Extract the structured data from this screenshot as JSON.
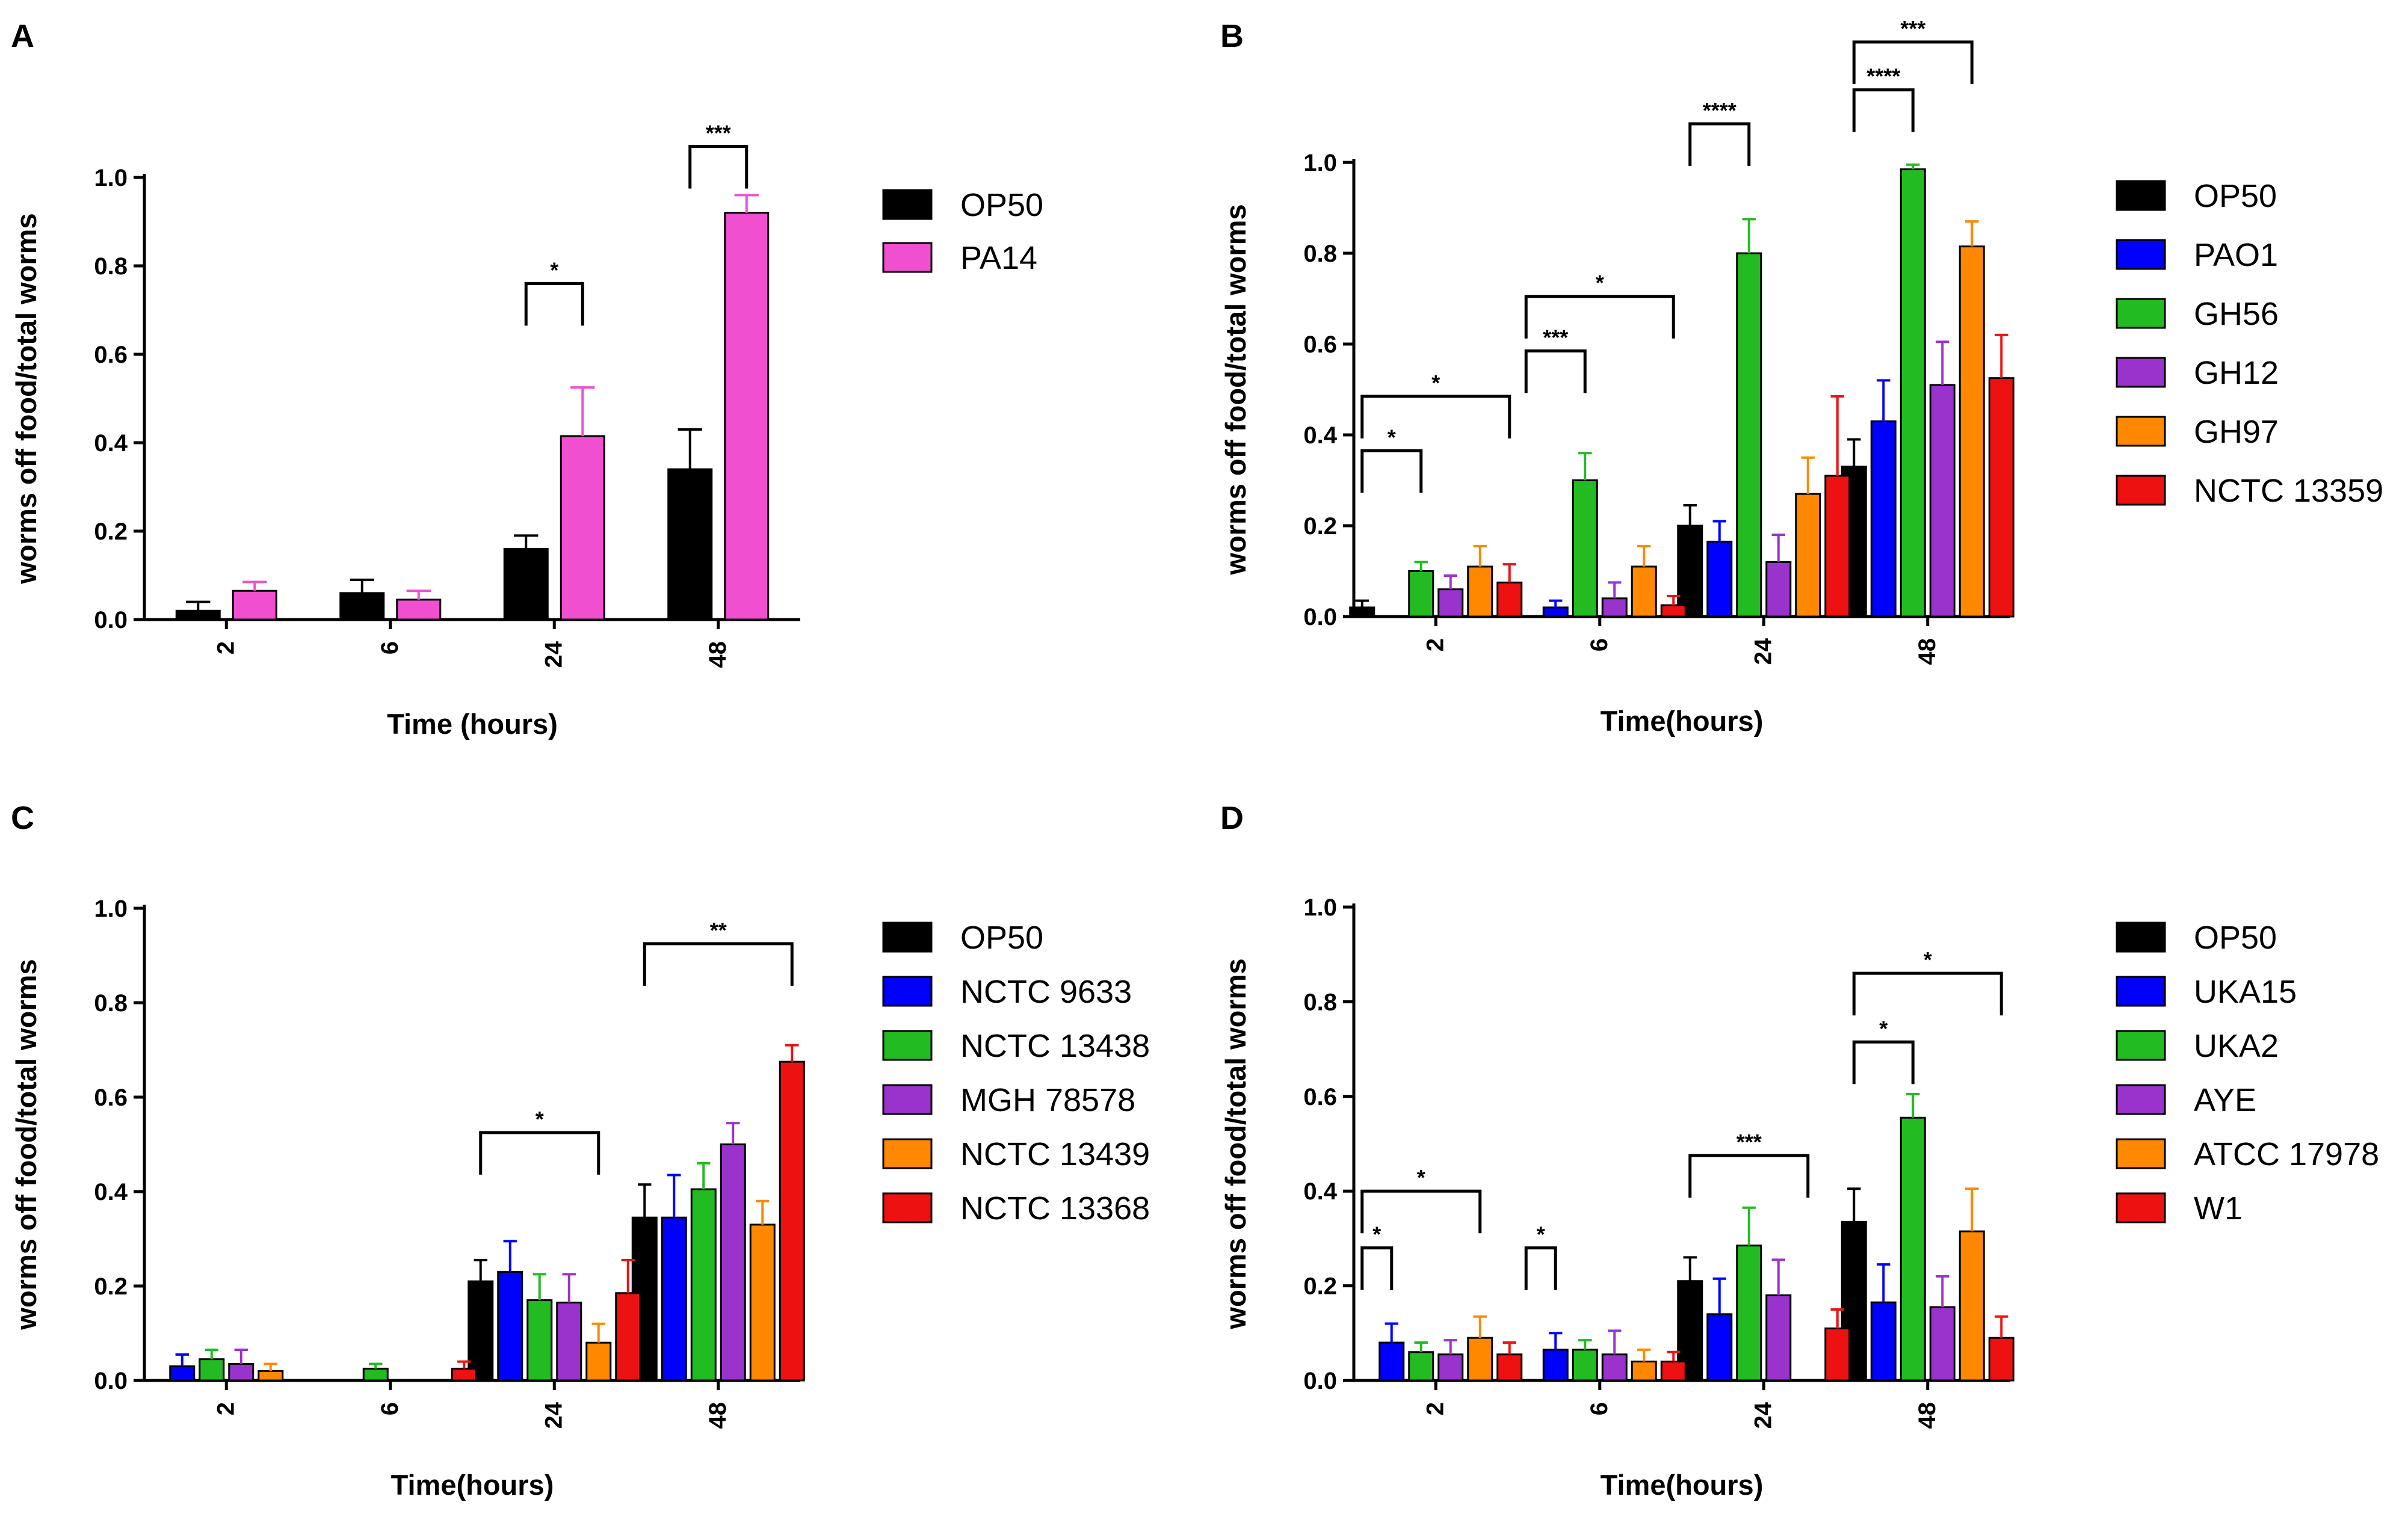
{
  "chart_data": [
    {
      "panel": "A",
      "type": "bar",
      "categories": [
        "2",
        "6",
        "24",
        "48"
      ],
      "xlabel": "Time (hours)",
      "ylabel": "worms off food/total worms",
      "ylim": [
        0,
        1.0
      ],
      "yticks": [
        "0.0",
        "0.2",
        "0.4",
        "0.6",
        "0.8",
        "1.0"
      ],
      "series": [
        {
          "name": "OP50",
          "color": "#000000",
          "values": [
            0.02,
            0.06,
            0.16,
            0.34
          ],
          "errors": [
            0.02,
            0.03,
            0.03,
            0.09
          ]
        },
        {
          "name": "PA14",
          "color": "#f050d0",
          "values": [
            0.065,
            0.045,
            0.415,
            0.92
          ],
          "errors": [
            0.02,
            0.02,
            0.11,
            0.04
          ]
        }
      ],
      "significance": [
        {
          "label": "*",
          "category": 2,
          "from": 0,
          "to": 1,
          "y": 0.76
        },
        {
          "label": "***",
          "category": 3,
          "from": 0,
          "to": 1,
          "y": 1.07
        }
      ]
    },
    {
      "panel": "B",
      "type": "bar",
      "categories": [
        "2",
        "6",
        "24",
        "48"
      ],
      "xlabel": "Time(hours)",
      "ylabel": "worms off food/total worms",
      "ylim": [
        0,
        1.0
      ],
      "yticks": [
        "0.0",
        "0.2",
        "0.4",
        "0.6",
        "0.8",
        "1.0"
      ],
      "series": [
        {
          "name": "OP50",
          "color": "#000000",
          "values": [
            0.02,
            0.0,
            0.2,
            0.33
          ],
          "errors": [
            0.015,
            0.0,
            0.045,
            0.06
          ]
        },
        {
          "name": "PAO1",
          "color": "#0000ff",
          "values": [
            0.0,
            0.02,
            0.165,
            0.43
          ],
          "errors": [
            0.0,
            0.015,
            0.045,
            0.09
          ]
        },
        {
          "name": "GH56",
          "color": "#22bb22",
          "values": [
            0.1,
            0.3,
            0.8,
            0.985
          ],
          "errors": [
            0.02,
            0.06,
            0.075,
            0.01
          ]
        },
        {
          "name": "GH12",
          "color": "#9933cc",
          "values": [
            0.06,
            0.04,
            0.12,
            0.51
          ],
          "errors": [
            0.03,
            0.035,
            0.06,
            0.095
          ]
        },
        {
          "name": "GH97",
          "color": "#ff8800",
          "values": [
            0.11,
            0.11,
            0.27,
            0.815
          ],
          "errors": [
            0.045,
            0.045,
            0.08,
            0.055
          ]
        },
        {
          "name": "NCTC 13359",
          "color": "#ee1111",
          "values": [
            0.075,
            0.025,
            0.31,
            0.525
          ],
          "errors": [
            0.04,
            0.02,
            0.175,
            0.095
          ]
        }
      ],
      "significance": [
        {
          "label": "*",
          "category": 0,
          "from": 0,
          "to": 2,
          "y": 0.365
        },
        {
          "label": "*",
          "category": 0,
          "from": 0,
          "to": 5,
          "y": 0.485
        },
        {
          "label": "***",
          "category": 1,
          "from": 0,
          "to": 2,
          "y": 0.585
        },
        {
          "label": "*",
          "category": 1,
          "from": 0,
          "to": 5,
          "y": 0.705
        },
        {
          "label": "****",
          "category": 2,
          "from": 0,
          "to": 2,
          "y": 1.085
        },
        {
          "label": "****",
          "category": 3,
          "from": 0,
          "to": 2,
          "y": 1.16
        },
        {
          "label": "***",
          "category": 3,
          "from": 0,
          "to": 4,
          "y": 1.265
        }
      ]
    },
    {
      "panel": "C",
      "type": "bar",
      "categories": [
        "2",
        "6",
        "24",
        "48"
      ],
      "xlabel": "Time(hours)",
      "ylabel": "worms off food/total worms",
      "ylim": [
        0,
        1.0
      ],
      "yticks": [
        "0.0",
        "0.2",
        "0.4",
        "0.6",
        "0.8",
        "1.0"
      ],
      "series": [
        {
          "name": "OP50",
          "color": "#000000",
          "values": [
            0.0,
            0.0,
            0.21,
            0.345
          ],
          "errors": [
            0.0,
            0.0,
            0.045,
            0.07
          ]
        },
        {
          "name": "NCTC 9633",
          "color": "#0000ff",
          "values": [
            0.03,
            0.0,
            0.23,
            0.345
          ],
          "errors": [
            0.025,
            0.0,
            0.065,
            0.09
          ]
        },
        {
          "name": "NCTC 13438",
          "color": "#22bb22",
          "values": [
            0.045,
            0.025,
            0.17,
            0.405
          ],
          "errors": [
            0.02,
            0.01,
            0.055,
            0.055
          ]
        },
        {
          "name": "MGH 78578",
          "color": "#9933cc",
          "values": [
            0.035,
            0.0,
            0.165,
            0.5
          ],
          "errors": [
            0.03,
            0.0,
            0.06,
            0.045
          ]
        },
        {
          "name": "NCTC 13439",
          "color": "#ff8800",
          "values": [
            0.02,
            0.0,
            0.08,
            0.33
          ],
          "errors": [
            0.015,
            0.0,
            0.04,
            0.05
          ]
        },
        {
          "name": "NCTC 13368",
          "color": "#ee1111",
          "values": [
            0.0,
            0.025,
            0.185,
            0.675
          ],
          "errors": [
            0.0,
            0.015,
            0.07,
            0.035
          ]
        }
      ],
      "significance": [
        {
          "label": "*",
          "category": 2,
          "from": 0,
          "to": 4,
          "y": 0.525
        },
        {
          "label": "**",
          "category": 3,
          "from": 0,
          "to": 5,
          "y": 0.925
        }
      ]
    },
    {
      "panel": "D",
      "type": "bar",
      "categories": [
        "2",
        "6",
        "24",
        "48"
      ],
      "xlabel": "Time(hours)",
      "ylabel": "worms off food/total worms",
      "ylim": [
        0,
        1.0
      ],
      "yticks": [
        "0.0",
        "0.2",
        "0.4",
        "0.6",
        "0.8",
        "1.0"
      ],
      "series": [
        {
          "name": "OP50",
          "color": "#000000",
          "values": [
            0.0,
            0.0,
            0.21,
            0.335
          ],
          "errors": [
            0.0,
            0.0,
            0.05,
            0.07
          ]
        },
        {
          "name": "UKA15",
          "color": "#0000ff",
          "values": [
            0.08,
            0.065,
            0.14,
            0.165
          ],
          "errors": [
            0.04,
            0.035,
            0.075,
            0.08
          ]
        },
        {
          "name": "UKA2",
          "color": "#22bb22",
          "values": [
            0.06,
            0.065,
            0.285,
            0.555
          ],
          "errors": [
            0.02,
            0.02,
            0.08,
            0.05
          ]
        },
        {
          "name": "AYE",
          "color": "#9933cc",
          "values": [
            0.055,
            0.055,
            0.18,
            0.155
          ],
          "errors": [
            0.03,
            0.05,
            0.075,
            0.065
          ]
        },
        {
          "name": "ATCC 17978",
          "color": "#ff8800",
          "values": [
            0.09,
            0.04,
            0.0,
            0.315
          ],
          "errors": [
            0.045,
            0.025,
            0.0,
            0.09
          ]
        },
        {
          "name": "W1",
          "color": "#ee1111",
          "values": [
            0.055,
            0.04,
            0.11,
            0.09
          ],
          "errors": [
            0.025,
            0.02,
            0.04,
            0.045
          ]
        }
      ],
      "significance": [
        {
          "label": "*",
          "category": 0,
          "from": 0,
          "to": 1,
          "y": 0.28
        },
        {
          "label": "*",
          "category": 0,
          "from": 0,
          "to": 4,
          "y": 0.4
        },
        {
          "label": "*",
          "category": 1,
          "from": 0,
          "to": 1,
          "y": 0.28
        },
        {
          "label": "***",
          "category": 2,
          "from": 0,
          "to": 4,
          "y": 0.475
        },
        {
          "label": "*",
          "category": 3,
          "from": 0,
          "to": 2,
          "y": 0.715
        },
        {
          "label": "*",
          "category": 3,
          "from": 0,
          "to": 5,
          "y": 0.86
        }
      ]
    }
  ]
}
